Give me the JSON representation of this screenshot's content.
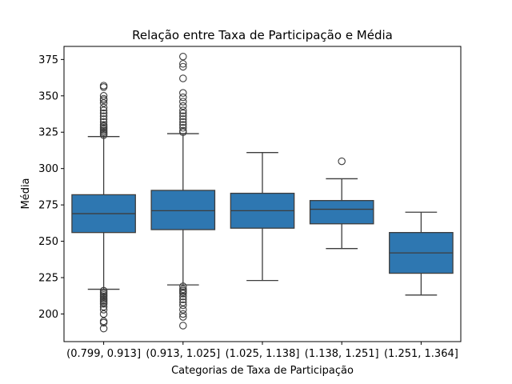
{
  "chart_data": {
    "type": "box",
    "title": "Relação entre Taxa de Participação e Média",
    "xlabel": "Categorias de Taxa de Participação",
    "ylabel": "Média",
    "ylim": [
      181,
      384
    ],
    "yticks": [
      200,
      225,
      250,
      275,
      300,
      325,
      350,
      375
    ],
    "grid": false,
    "box_color": "#2e77b1",
    "line_color": "#3d3d3d",
    "categories": [
      "(0.799, 0.913]",
      "(0.913, 1.025]",
      "(1.025, 1.138]",
      "(1.138, 1.251]",
      "(1.251, 1.364]"
    ],
    "boxes": [
      {
        "whisker_low": 217,
        "q1": 256,
        "median": 269,
        "q3": 282,
        "whisker_high": 322,
        "outliers_low": [
          216,
          215,
          214,
          213,
          212,
          211,
          210,
          209,
          208,
          207,
          205,
          203,
          200,
          195,
          194,
          190
        ],
        "outliers_high": [
          323,
          324,
          325,
          326,
          327,
          328,
          329,
          330,
          332,
          334,
          336,
          338,
          340,
          342,
          345,
          347,
          348,
          350,
          356,
          357
        ]
      },
      {
        "whisker_low": 220,
        "q1": 258,
        "median": 271,
        "q3": 285,
        "whisker_high": 324,
        "outliers_low": [
          219,
          217,
          216,
          215,
          214,
          212,
          210,
          208,
          206,
          203,
          200,
          198,
          192
        ],
        "outliers_high": [
          325,
          326,
          328,
          330,
          332,
          334,
          336,
          338,
          340,
          343,
          346,
          349,
          352,
          362,
          370,
          372,
          377
        ]
      },
      {
        "whisker_low": 223,
        "q1": 259,
        "median": 271,
        "q3": 283,
        "whisker_high": 311,
        "outliers_low": [],
        "outliers_high": []
      },
      {
        "whisker_low": 245,
        "q1": 262,
        "median": 272,
        "q3": 278,
        "whisker_high": 293,
        "outliers_low": [],
        "outliers_high": [
          305
        ]
      },
      {
        "whisker_low": 213,
        "q1": 228,
        "median": 242,
        "q3": 256,
        "whisker_high": 270,
        "outliers_low": [],
        "outliers_high": []
      }
    ]
  }
}
